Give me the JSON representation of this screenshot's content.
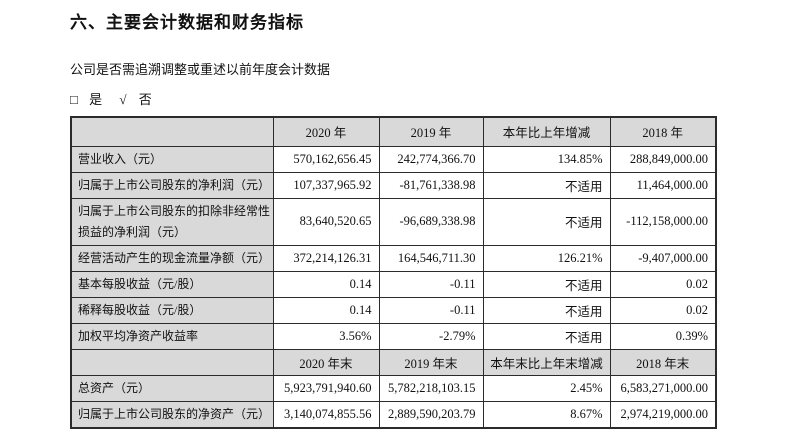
{
  "page": {
    "title": "六、主要会计数据和财务指标",
    "question": "公司是否需追溯调整或重述以前年度会计数据",
    "choice": {
      "unchecked_icon": "□",
      "yes_label": "是",
      "check_icon": "√",
      "no_label": "否"
    }
  },
  "colors": {
    "header_bg": "#d9d9d9",
    "label_bg": "#d9d9d9",
    "border": "#2b2b2b"
  },
  "table": {
    "header1": [
      "",
      "2020 年",
      "2019 年",
      "本年比上年增减",
      "2018 年"
    ],
    "rows1": [
      {
        "label": "营业收入（元）",
        "values": [
          "570,162,656.45",
          "242,774,366.70",
          "134.85%",
          "288,849,000.00"
        ]
      },
      {
        "label": "归属于上市公司股东的净利润（元）",
        "values": [
          "107,337,965.92",
          "-81,761,338.98",
          "不适用",
          "11,464,000.00"
        ]
      },
      {
        "label": "归属于上市公司股东的扣除非经常性损益的净利润（元）",
        "values": [
          "83,640,520.65",
          "-96,689,338.98",
          "不适用",
          "-112,158,000.00"
        ]
      },
      {
        "label": "经营活动产生的现金流量净额（元）",
        "values": [
          "372,214,126.31",
          "164,546,711.30",
          "126.21%",
          "-9,407,000.00"
        ]
      },
      {
        "label": "基本每股收益（元/股）",
        "values": [
          "0.14",
          "-0.11",
          "不适用",
          "0.02"
        ]
      },
      {
        "label": "稀释每股收益（元/股）",
        "values": [
          "0.14",
          "-0.11",
          "不适用",
          "0.02"
        ]
      },
      {
        "label": "加权平均净资产收益率",
        "values": [
          "3.56%",
          "-2.79%",
          "不适用",
          "0.39%"
        ]
      }
    ],
    "header2": [
      "",
      "2020 年末",
      "2019 年末",
      "本年末比上年末增减",
      "2018 年末"
    ],
    "rows2": [
      {
        "label": "总资产（元）",
        "values": [
          "5,923,791,940.60",
          "5,782,218,103.15",
          "2.45%",
          "6,583,271,000.00"
        ]
      },
      {
        "label": "归属于上市公司股东的净资产（元）",
        "values": [
          "3,140,074,855.56",
          "2,889,590,203.79",
          "8.67%",
          "2,974,219,000.00"
        ]
      }
    ]
  }
}
